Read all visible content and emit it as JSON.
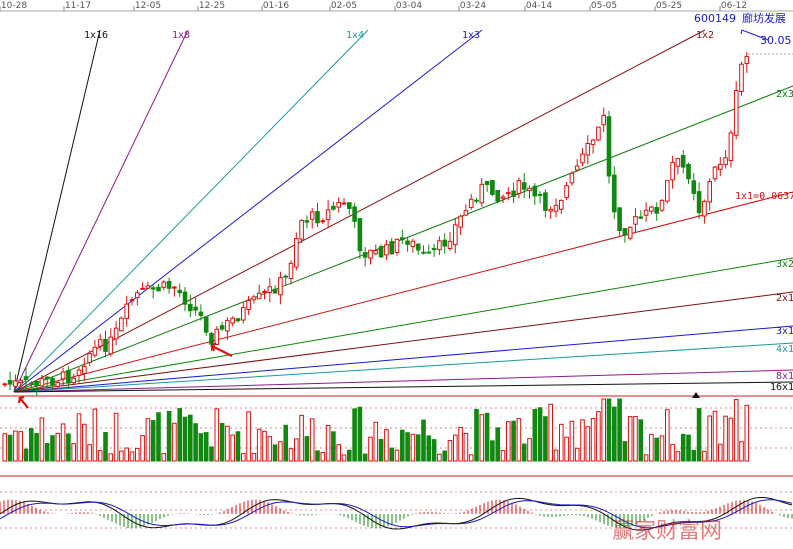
{
  "chart_data": {
    "type": "candlestick",
    "ticker": {
      "code": "600149",
      "name": "廊坊发展"
    },
    "high_label": "30.05",
    "dates": [
      "10-28",
      "11-17",
      "12-05",
      "12-25",
      "01-16",
      "02-05",
      "03-04",
      "03-24",
      "04-14",
      "05-05",
      "05-25",
      "06-12"
    ],
    "fan_lines": [
      {
        "label": "1x16",
        "color": "#111111"
      },
      {
        "label": "1x8",
        "color": "#8a1a8a"
      },
      {
        "label": "1x4",
        "color": "#1a9a9a"
      },
      {
        "label": "1x3",
        "color": "#1a1acc"
      },
      {
        "label": "1x2",
        "color": "#8a1010"
      },
      {
        "label": "2x3",
        "color": "#0a7a0a"
      },
      {
        "label": "1x1=0.0637",
        "color": "#cc1010"
      },
      {
        "label": "3x2",
        "color": "#0a8a0a"
      },
      {
        "label": "2x1",
        "color": "#7a1010"
      },
      {
        "label": "3x1",
        "color": "#1a1acc"
      },
      {
        "label": "4x1",
        "color": "#1a9a9a"
      },
      {
        "label": "8x1",
        "color": "#8a1a8a"
      },
      {
        "label": "16x1",
        "color": "#111111"
      }
    ],
    "watermark": "赢家财富网"
  },
  "colors": {
    "up": "#dd1111",
    "down": "#118811",
    "grid": "#dd8888",
    "axis": "#cc2222"
  }
}
